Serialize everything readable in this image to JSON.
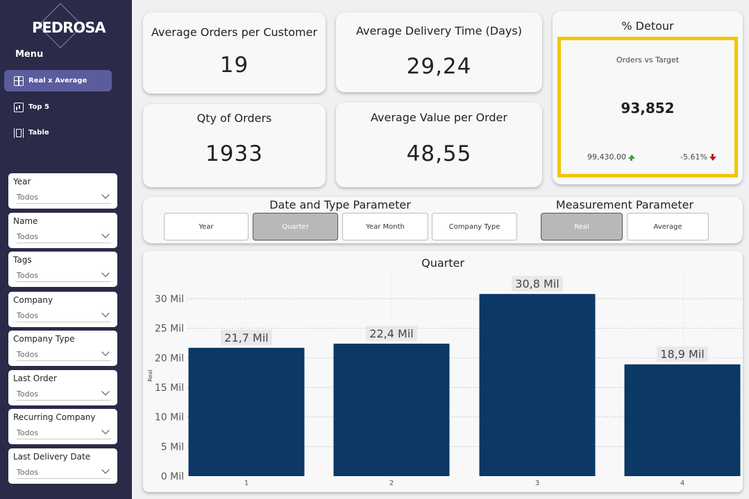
{
  "logo": {
    "text": "PEDROSA"
  },
  "menu": {
    "title": "Menu",
    "items": [
      {
        "label": "Real x Average",
        "icon": "dashboard-icon",
        "active": true
      },
      {
        "label": "Top 5",
        "icon": "bar-chart-icon",
        "active": false
      },
      {
        "label": "Table",
        "icon": "table-icon",
        "active": false
      }
    ]
  },
  "slicers": [
    {
      "label": "Year",
      "value": "Todos"
    },
    {
      "label": "Name",
      "value": "Todos"
    },
    {
      "label": "Tags",
      "value": "Todos"
    },
    {
      "label": "Company",
      "value": "Todos"
    },
    {
      "label": "Company Type",
      "value": "Todos"
    },
    {
      "label": "Last Order",
      "value": "Todos"
    },
    {
      "label": "Recurring Company",
      "value": "Todos"
    },
    {
      "label": "Last Delivery Date",
      "value": "Todos"
    }
  ],
  "kpis": {
    "avg_orders_per_customer": {
      "title": "Average Orders per Customer",
      "value": "19"
    },
    "avg_delivery_time": {
      "title": "Average Delivery Time (Days)",
      "value": "29,24"
    },
    "qty_orders": {
      "title": "Qty of Orders",
      "value": "1933"
    },
    "avg_value_per_order": {
      "title": "Average Value per Order",
      "value": "48,55"
    }
  },
  "detour": {
    "title": "% Detour",
    "subtitle": "Orders vs Target",
    "value": "93,852",
    "goal": "99,430.00",
    "variance": "-5.61%",
    "highlight_color": "#f2c500"
  },
  "date_param": {
    "title": "Date and Type Parameter",
    "options": [
      "Year",
      "Quarter",
      "Year Month",
      "Company Type"
    ],
    "selected": "Quarter"
  },
  "measure_param": {
    "title": "Measurement Parameter",
    "options": [
      "Real",
      "Average"
    ],
    "selected": "Real"
  },
  "chart_data": {
    "type": "bar",
    "title": "Quarter",
    "ylabel": "Real",
    "xlabel": "",
    "categories": [
      "1",
      "2",
      "3",
      "4"
    ],
    "values": [
      21700,
      22400,
      30800,
      18900
    ],
    "data_labels": [
      "21,7 Mil",
      "22,4 Mil",
      "30,8 Mil",
      "18,9 Mil"
    ],
    "yticks": [
      0,
      5000,
      10000,
      15000,
      20000,
      25000,
      30000
    ],
    "ytick_labels": [
      "0 Mil",
      "5 Mil",
      "10 Mil",
      "15 Mil",
      "20 Mil",
      "25 Mil",
      "30 Mil"
    ],
    "ylim": [
      0,
      33000
    ],
    "grid": true,
    "bar_color": "#0b3865"
  }
}
